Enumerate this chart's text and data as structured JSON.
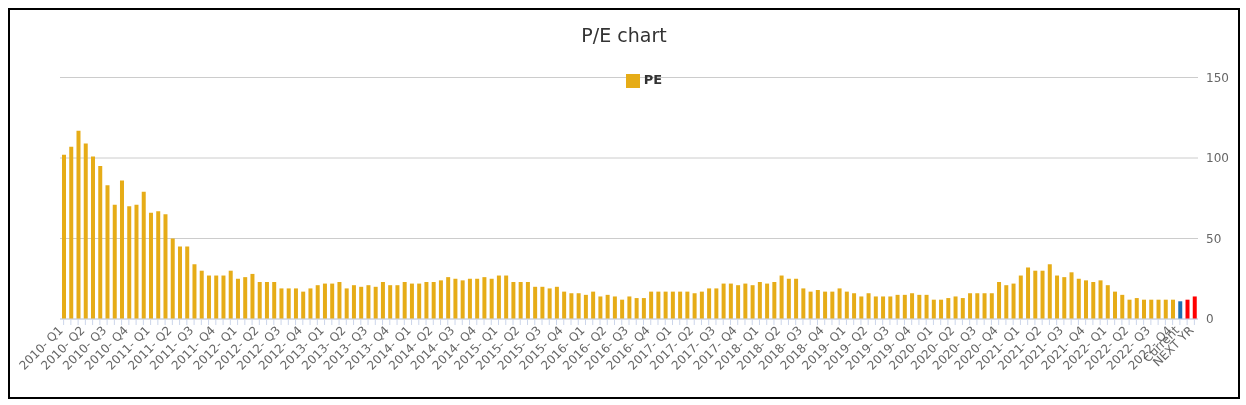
{
  "chart_data": {
    "type": "bar",
    "title": "P/E chart",
    "categories": [
      "2010- Q1",
      null,
      null,
      "2010- Q2",
      null,
      null,
      "2010- Q3",
      null,
      null,
      "2010- Q4",
      null,
      null,
      "2011- Q1",
      null,
      null,
      "2011- Q2",
      null,
      null,
      "2011- Q3",
      null,
      null,
      "2011- Q4",
      null,
      null,
      "2012- Q1",
      null,
      null,
      "2012- Q2",
      null,
      null,
      "2012- Q3",
      null,
      null,
      "2012- Q4",
      null,
      null,
      "2013- Q1",
      null,
      null,
      "2013- Q2",
      null,
      null,
      "2013- Q3",
      null,
      null,
      "2013- Q4",
      null,
      null,
      "2014- Q1",
      null,
      null,
      "2014- Q2",
      null,
      null,
      "2014- Q3",
      null,
      null,
      "2014- Q4",
      null,
      null,
      "2015- Q1",
      null,
      null,
      "2015- Q2",
      null,
      null,
      "2015- Q3",
      null,
      null,
      "2015- Q4",
      null,
      null,
      "2016- Q1",
      null,
      null,
      "2016- Q2",
      null,
      null,
      "2016- Q3",
      null,
      null,
      "2016- Q4",
      null,
      null,
      "2017- Q1",
      null,
      null,
      "2017- Q2",
      null,
      null,
      "2017- Q3",
      null,
      null,
      "2017- Q4",
      null,
      null,
      "2018- Q1",
      null,
      null,
      "2018- Q2",
      null,
      null,
      "2018- Q3",
      null,
      null,
      "2018- Q4",
      null,
      null,
      "2019- Q1",
      null,
      null,
      "2019- Q2",
      null,
      null,
      "2019- Q3",
      null,
      null,
      "2019- Q4",
      null,
      null,
      "2020- Q1",
      null,
      null,
      "2020- Q2",
      null,
      null,
      "2020- Q3",
      null,
      null,
      "2020- Q4",
      null,
      null,
      "2021- Q1",
      null,
      null,
      "2021- Q2",
      null,
      null,
      "2021- Q3",
      null,
      null,
      "2021- Q4",
      null,
      null,
      "2022- Q1",
      null,
      null,
      "2022- Q2",
      null,
      null,
      "2022- Q3",
      null,
      null,
      "2022- Q4",
      "Current",
      null,
      "NEXT YR"
    ],
    "series": [
      {
        "name": "PE",
        "color": "#e6ac17",
        "values": [
          102,
          107,
          117,
          109,
          101,
          95,
          83,
          71,
          86,
          70,
          71,
          79,
          66,
          67,
          65,
          50,
          45,
          45,
          34,
          30,
          27,
          27,
          27,
          30,
          25,
          26,
          28,
          23,
          23,
          23,
          19,
          19,
          19,
          17,
          19,
          21,
          22,
          22,
          23,
          19,
          21,
          20,
          21,
          20,
          23,
          21,
          21,
          23,
          22,
          22,
          23,
          23,
          24,
          26,
          25,
          24,
          25,
          25,
          26,
          25,
          27,
          27,
          23,
          23,
          23,
          20,
          20,
          19,
          20,
          17,
          16,
          16,
          15,
          17,
          14,
          15,
          14,
          12,
          14,
          13,
          13,
          17,
          17,
          17,
          17,
          17,
          17,
          16,
          17,
          19,
          19,
          22,
          22,
          21,
          22,
          21,
          23,
          22,
          23,
          27,
          25,
          25,
          19,
          17,
          18,
          17,
          17,
          19,
          17,
          16,
          14,
          16,
          14,
          14,
          14,
          15,
          15,
          16,
          15,
          15,
          12,
          12,
          13,
          14,
          13,
          16,
          16,
          16,
          16,
          23,
          21,
          22,
          27,
          32,
          30,
          30,
          34,
          27,
          26,
          29,
          25,
          24,
          23,
          24,
          21,
          17,
          15,
          12,
          13,
          12,
          12,
          12,
          12,
          12,
          11,
          12,
          14
        ],
        "colors": [
          "#e6ac17",
          "#e6ac17",
          "#e6ac17",
          "#e6ac17",
          "#e6ac17",
          "#e6ac17",
          "#e6ac17",
          "#e6ac17",
          "#e6ac17",
          "#e6ac17",
          "#e6ac17",
          "#e6ac17",
          "#e6ac17",
          "#e6ac17",
          "#e6ac17",
          "#e6ac17",
          "#e6ac17",
          "#e6ac17",
          "#e6ac17",
          "#e6ac17",
          "#e6ac17",
          "#e6ac17",
          "#e6ac17",
          "#e6ac17",
          "#e6ac17",
          "#e6ac17",
          "#e6ac17",
          "#e6ac17",
          "#e6ac17",
          "#e6ac17",
          "#e6ac17",
          "#e6ac17",
          "#e6ac17",
          "#e6ac17",
          "#e6ac17",
          "#e6ac17",
          "#e6ac17",
          "#e6ac17",
          "#e6ac17",
          "#e6ac17",
          "#e6ac17",
          "#e6ac17",
          "#e6ac17",
          "#e6ac17",
          "#e6ac17",
          "#e6ac17",
          "#e6ac17",
          "#e6ac17",
          "#e6ac17",
          "#e6ac17",
          "#e6ac17",
          "#e6ac17",
          "#e6ac17",
          "#e6ac17",
          "#e6ac17",
          "#e6ac17",
          "#e6ac17",
          "#e6ac17",
          "#e6ac17",
          "#e6ac17",
          "#e6ac17",
          "#e6ac17",
          "#e6ac17",
          "#e6ac17",
          "#e6ac17",
          "#e6ac17",
          "#e6ac17",
          "#e6ac17",
          "#e6ac17",
          "#e6ac17",
          "#e6ac17",
          "#e6ac17",
          "#e6ac17",
          "#e6ac17",
          "#e6ac17",
          "#e6ac17",
          "#e6ac17",
          "#e6ac17",
          "#e6ac17",
          "#e6ac17",
          "#e6ac17",
          "#e6ac17",
          "#e6ac17",
          "#e6ac17",
          "#e6ac17",
          "#e6ac17",
          "#e6ac17",
          "#e6ac17",
          "#e6ac17",
          "#e6ac17",
          "#e6ac17",
          "#e6ac17",
          "#e6ac17",
          "#e6ac17",
          "#e6ac17",
          "#e6ac17",
          "#e6ac17",
          "#e6ac17",
          "#e6ac17",
          "#e6ac17",
          "#e6ac17",
          "#e6ac17",
          "#e6ac17",
          "#e6ac17",
          "#e6ac17",
          "#e6ac17",
          "#e6ac17",
          "#e6ac17",
          "#e6ac17",
          "#e6ac17",
          "#e6ac17",
          "#e6ac17",
          "#e6ac17",
          "#e6ac17",
          "#e6ac17",
          "#e6ac17",
          "#e6ac17",
          "#e6ac17",
          "#e6ac17",
          "#e6ac17",
          "#e6ac17",
          "#e6ac17",
          "#e6ac17",
          "#e6ac17",
          "#e6ac17",
          "#e6ac17",
          "#e6ac17",
          "#e6ac17",
          "#e6ac17",
          "#e6ac17",
          "#e6ac17",
          "#e6ac17",
          "#e6ac17",
          "#e6ac17",
          "#e6ac17",
          "#e6ac17",
          "#e6ac17",
          "#e6ac17",
          "#e6ac17",
          "#e6ac17",
          "#e6ac17",
          "#e6ac17",
          "#e6ac17",
          "#e6ac17",
          "#e6ac17",
          "#e6ac17",
          "#e6ac17",
          "#e6ac17",
          "#e6ac17",
          "#e6ac17",
          "#e6ac17",
          "#e6ac17",
          "#e6ac17",
          "#e6ac17",
          "#1f6fb0",
          "#ff0000",
          "#ff0000"
        ]
      }
    ],
    "ylim": [
      0,
      150
    ],
    "yticks": [
      0,
      50,
      100,
      150
    ],
    "grid": "y",
    "legend": "top"
  }
}
